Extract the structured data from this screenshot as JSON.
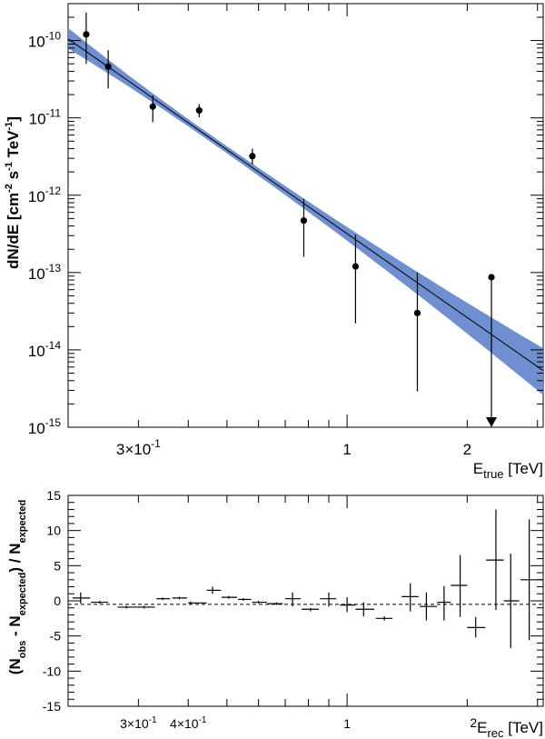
{
  "chart_data": [
    {
      "type": "scatter",
      "title": "",
      "xscale": "log",
      "yscale": "log",
      "xlim": [
        0.2,
        3.1
      ],
      "ylim": [
        1e-15,
        3e-10
      ],
      "xlabel": "E_true [TeV]",
      "xlabel_main": "E",
      "xlabel_sub": "true",
      "xlabel_unit": " [TeV]",
      "ylabel": "dN/dE [cm^-2 s^-1 TeV^-1]",
      "ylabel_parts": [
        "dN/dE [cm",
        "-2",
        " s",
        "-1",
        " TeV",
        "-1",
        "]"
      ],
      "x_ticks": [
        {
          "value": 0.3,
          "label": "3×10",
          "exp": "-1"
        },
        {
          "value": 1,
          "label": "1",
          "exp": ""
        },
        {
          "value": 2,
          "label": "2",
          "exp": ""
        }
      ],
      "y_ticks": [
        {
          "value": 1e-10,
          "mantissa": "10",
          "exp": "-10"
        },
        {
          "value": 1e-11,
          "mantissa": "10",
          "exp": "-11"
        },
        {
          "value": 1e-12,
          "mantissa": "10",
          "exp": "-12"
        },
        {
          "value": 1e-13,
          "mantissa": "10",
          "exp": "-13"
        },
        {
          "value": 1e-14,
          "mantissa": "10",
          "exp": "-14"
        },
        {
          "value": 1e-15,
          "mantissa": "10",
          "exp": "-15"
        }
      ],
      "fit": {
        "type": "power-law",
        "x_start": 0.2,
        "x_end": 3.1,
        "y_start": 1.05e-10,
        "y_end": 5.4e-15,
        "band_upper_start": 1.45e-10,
        "band_lower_start": 7.9e-11,
        "band_upper_end": 1.05e-14,
        "band_lower_end": 2.6e-15,
        "band_pivot_x": 0.45,
        "line_color": "#000000",
        "band_color": "#6f8fd0"
      },
      "series": [
        {
          "name": "flux points",
          "points": [
            {
              "x": 0.222,
              "y": 1.2e-10,
              "ylo": 5e-11,
              "yhi": 2.3e-10
            },
            {
              "x": 0.252,
              "y": 4.6e-11,
              "ylo": 2.4e-11,
              "yhi": 7.5e-11
            },
            {
              "x": 0.326,
              "y": 1.4e-11,
              "ylo": 8.8e-12,
              "yhi": 1.95e-11
            },
            {
              "x": 0.426,
              "y": 1.25e-11,
              "ylo": 1.02e-11,
              "yhi": 1.5e-11
            },
            {
              "x": 0.579,
              "y": 3.2e-12,
              "ylo": 2.5e-12,
              "yhi": 4e-12
            },
            {
              "x": 0.779,
              "y": 4.7e-13,
              "ylo": 1.6e-13,
              "yhi": 9e-13
            },
            {
              "x": 1.05,
              "y": 1.2e-13,
              "ylo": 2.2e-14,
              "yhi": 3.1e-13
            },
            {
              "x": 1.5,
              "y": 3e-14,
              "ylo": 2.9e-15,
              "yhi": 1e-13
            },
            {
              "x": 2.3,
              "y": 8.7e-14,
              "upper_limit": true,
              "arrow_to": 1e-15
            }
          ]
        }
      ]
    },
    {
      "type": "scatter",
      "title": "",
      "xscale": "log",
      "yscale": "linear",
      "xlim": [
        0.2,
        3.1
      ],
      "ylim": [
        -15,
        15
      ],
      "xlabel": "E_rec [TeV]",
      "xlabel_main": "E",
      "xlabel_sub": "rec",
      "xlabel_unit": " [TeV]",
      "xlabel_prefix": "2",
      "ylabel": "(N_obs - N_expected) / N_expected",
      "ylabel_parts": [
        "(N",
        "obs",
        " - N",
        "expected",
        ") / N",
        "expected"
      ],
      "x_ticks": [
        {
          "value": 0.3,
          "label": "3×10",
          "exp": "-1"
        },
        {
          "value": 0.4,
          "label": "4×10",
          "exp": "-1"
        },
        {
          "value": 1,
          "label": "1",
          "exp": ""
        }
      ],
      "y_ticks": [
        15,
        10,
        5,
        0,
        -5,
        -10,
        -15
      ],
      "reference_line": {
        "y": -0.5,
        "style": "dashed"
      },
      "series": [
        {
          "name": "residuals",
          "points": [
            {
              "x": 0.215,
              "xerr_lo": 0.205,
              "xerr_hi": 0.227,
              "y": 0.4,
              "ylo": -0.4,
              "yhi": 1.2
            },
            {
              "x": 0.24,
              "xerr_lo": 0.228,
              "xerr_hi": 0.252,
              "y": -0.2,
              "ylo": -0.2,
              "yhi": -0.2
            },
            {
              "x": 0.28,
              "xerr_lo": 0.266,
              "xerr_hi": 0.298,
              "y": -0.9,
              "ylo": -0.9,
              "yhi": -0.9
            },
            {
              "x": 0.31,
              "xerr_lo": 0.298,
              "xerr_hi": 0.33,
              "y": -0.9,
              "ylo": -0.9,
              "yhi": -0.9
            },
            {
              "x": 0.345,
              "xerr_lo": 0.333,
              "xerr_hi": 0.36,
              "y": 0.3,
              "ylo": 0.3,
              "yhi": 0.3
            },
            {
              "x": 0.38,
              "xerr_lo": 0.365,
              "xerr_hi": 0.397,
              "y": 0.4,
              "ylo": 0.4,
              "yhi": 0.4
            },
            {
              "x": 0.405,
              "xerr_lo": 0.4,
              "xerr_hi": 0.445,
              "y": -0.3,
              "ylo": -0.3,
              "yhi": -0.3
            },
            {
              "x": 0.46,
              "xerr_lo": 0.445,
              "xerr_hi": 0.483,
              "y": 1.5,
              "ylo": 1.0,
              "yhi": 2.0
            },
            {
              "x": 0.505,
              "xerr_lo": 0.485,
              "xerr_hi": 0.53,
              "y": 0.5,
              "ylo": 0.5,
              "yhi": 0.5
            },
            {
              "x": 0.55,
              "xerr_lo": 0.533,
              "xerr_hi": 0.575,
              "y": 0.2,
              "ylo": 0.2,
              "yhi": 0.2
            },
            {
              "x": 0.6,
              "xerr_lo": 0.578,
              "xerr_hi": 0.63,
              "y": -0.2,
              "ylo": -0.2,
              "yhi": -0.2
            },
            {
              "x": 0.665,
              "xerr_lo": 0.632,
              "xerr_hi": 0.69,
              "y": -0.4,
              "ylo": -0.4,
              "yhi": -0.4
            },
            {
              "x": 0.73,
              "xerr_lo": 0.7,
              "xerr_hi": 0.765,
              "y": 0.3,
              "ylo": -0.8,
              "yhi": 1.2
            },
            {
              "x": 0.81,
              "xerr_lo": 0.77,
              "xerr_hi": 0.85,
              "y": -1.2,
              "ylo": -1.5,
              "yhi": -1.0
            },
            {
              "x": 0.9,
              "xerr_lo": 0.855,
              "xerr_hi": 0.94,
              "y": 0.3,
              "ylo": -0.8,
              "yhi": 1.2
            },
            {
              "x": 1.0,
              "xerr_lo": 0.96,
              "xerr_hi": 1.05,
              "y": -0.6,
              "ylo": -1.6,
              "yhi": 0.5
            },
            {
              "x": 1.1,
              "xerr_lo": 1.05,
              "xerr_hi": 1.17,
              "y": -1.2,
              "ylo": -2.2,
              "yhi": -0.2
            },
            {
              "x": 1.24,
              "xerr_lo": 1.18,
              "xerr_hi": 1.3,
              "y": -2.5,
              "ylo": -2.8,
              "yhi": -2.2
            },
            {
              "x": 1.44,
              "xerr_lo": 1.37,
              "xerr_hi": 1.51,
              "y": 0.6,
              "ylo": -1.5,
              "yhi": 2.5
            },
            {
              "x": 1.58,
              "xerr_lo": 1.52,
              "xerr_hi": 1.68,
              "y": -0.8,
              "ylo": -2.8,
              "yhi": 1.2
            },
            {
              "x": 1.75,
              "xerr_lo": 1.68,
              "xerr_hi": 1.82,
              "y": -0.2,
              "ylo": -2.8,
              "yhi": 2.1
            },
            {
              "x": 1.92,
              "xerr_lo": 1.82,
              "xerr_hi": 2.0,
              "y": 2.2,
              "ylo": -2.3,
              "yhi": 6.5
            },
            {
              "x": 2.1,
              "xerr_lo": 2.0,
              "xerr_hi": 2.22,
              "y": -3.8,
              "ylo": -5.2,
              "yhi": -2.3
            },
            {
              "x": 2.36,
              "xerr_lo": 2.23,
              "xerr_hi": 2.47,
              "y": 5.8,
              "ylo": -1.3,
              "yhi": 13.0
            },
            {
              "x": 2.57,
              "xerr_lo": 2.47,
              "xerr_hi": 2.7,
              "y": 0.0,
              "ylo": -6.7,
              "yhi": 6.7
            },
            {
              "x": 2.86,
              "xerr_lo": 2.72,
              "xerr_hi": 3.1,
              "y": 3.0,
              "ylo": -5.6,
              "yhi": 11.6
            }
          ]
        }
      ]
    }
  ]
}
